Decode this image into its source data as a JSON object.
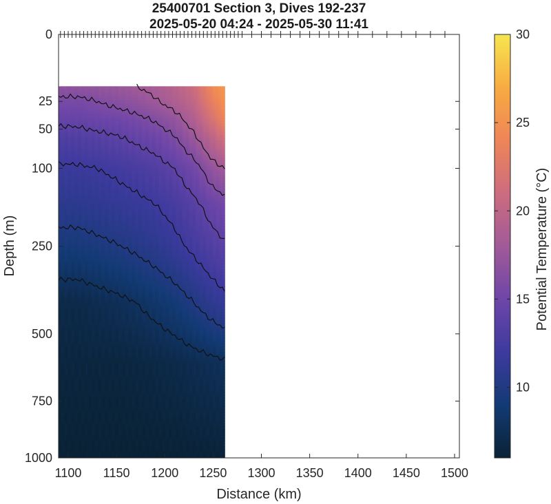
{
  "chart_data": {
    "type": "heatmap",
    "title_lines": [
      "25400701 Section 3, Dives 192-237",
      "2025-05-20 04:24 - 2025-05-30 11:41"
    ],
    "xlabel": "Distance (km)",
    "ylabel": "Depth (m)",
    "colorbar_label": "Potential Temperature (°C)",
    "x_ticks": [
      1100,
      1150,
      1200,
      1250,
      1300,
      1350,
      1400,
      1450,
      1500
    ],
    "y_ticks": [
      0,
      25,
      50,
      100,
      250,
      500,
      750,
      1000
    ],
    "colorbar_ticks": [
      10,
      15,
      20,
      25,
      30
    ],
    "xlim": [
      1090,
      1505
    ],
    "ylim": [
      0,
      1000
    ],
    "y_scale": "square-root (depth)",
    "clim": [
      6,
      30
    ],
    "colormap": [
      "#0a2235",
      "#133a74",
      "#3d3a9e",
      "#6e46a8",
      "#a15a98",
      "#cc6c7f",
      "#ee8558",
      "#f8ab42",
      "#f6e64f"
    ],
    "data_x_range": [
      1090,
      1262
    ],
    "data_top_depth": 15,
    "contour_levels_approx": [
      8,
      10,
      12,
      14,
      16,
      18
    ],
    "dive_marker_distances": [
      1092,
      1096,
      1100,
      1104,
      1108,
      1112,
      1116,
      1120,
      1124,
      1128,
      1132,
      1136,
      1140,
      1144,
      1148,
      1152,
      1156,
      1160,
      1164,
      1168,
      1172,
      1176,
      1180,
      1184,
      1188,
      1192,
      1196,
      1200,
      1204,
      1208,
      1212,
      1216,
      1220,
      1224,
      1228,
      1232,
      1236,
      1240,
      1244,
      1248,
      1252,
      1256,
      1260,
      1264,
      1268,
      1272,
      1276,
      1280,
      1290,
      1300,
      1310,
      1320,
      1330,
      1340,
      1350,
      1360,
      1370,
      1380,
      1390,
      1400,
      1415,
      1430,
      1445,
      1460,
      1475,
      1490
    ],
    "temperature_profiles": [
      {
        "x": 1090,
        "depths": [
          15,
          25,
          40,
          60,
          100,
          160,
          250,
          400,
          600,
          1000
        ],
        "temps": [
          17,
          15.5,
          14.5,
          13,
          11.8,
          10.8,
          9.3,
          7,
          6.5,
          6
        ]
      },
      {
        "x": 1110,
        "depths": [
          15,
          25,
          40,
          60,
          100,
          160,
          250,
          400,
          600,
          1000
        ],
        "temps": [
          17,
          15.5,
          14.5,
          13.2,
          11.8,
          10.8,
          9.3,
          7,
          6.5,
          6
        ]
      },
      {
        "x": 1130,
        "depths": [
          15,
          25,
          40,
          60,
          100,
          160,
          250,
          400,
          600,
          1000
        ],
        "temps": [
          17.2,
          16,
          14.8,
          13.5,
          12,
          11,
          9.6,
          7.3,
          6.5,
          6
        ]
      },
      {
        "x": 1150,
        "depths": [
          15,
          25,
          40,
          60,
          100,
          160,
          250,
          400,
          600,
          1000
        ],
        "temps": [
          17.5,
          16.5,
          15,
          13.8,
          12.3,
          11.3,
          9.9,
          7.6,
          6.5,
          6
        ]
      },
      {
        "x": 1170,
        "depths": [
          15,
          25,
          40,
          60,
          100,
          160,
          250,
          400,
          600,
          1000
        ],
        "temps": [
          18,
          17,
          15.5,
          14.3,
          12.7,
          11.6,
          10.3,
          8,
          6.6,
          6
        ]
      },
      {
        "x": 1190,
        "depths": [
          15,
          25,
          40,
          60,
          100,
          160,
          250,
          400,
          600,
          1000
        ],
        "temps": [
          18.5,
          17.8,
          16.2,
          14.8,
          13.2,
          12,
          10.8,
          8.5,
          6.8,
          6
        ]
      },
      {
        "x": 1210,
        "depths": [
          15,
          25,
          40,
          60,
          100,
          160,
          250,
          400,
          600,
          1000
        ],
        "temps": [
          19.5,
          18.8,
          17.2,
          15.8,
          14,
          12.6,
          11.5,
          9.1,
          7,
          6
        ]
      },
      {
        "x": 1230,
        "depths": [
          15,
          25,
          40,
          60,
          100,
          160,
          250,
          400,
          600,
          1000
        ],
        "temps": [
          21,
          20.2,
          19,
          17.5,
          15.2,
          13.6,
          12.4,
          10,
          7.3,
          6.1
        ]
      },
      {
        "x": 1250,
        "depths": [
          15,
          25,
          40,
          60,
          100,
          160,
          250,
          400,
          600,
          1000
        ],
        "temps": [
          24.5,
          23.5,
          22,
          20,
          17.2,
          14.8,
          13.3,
          11,
          7.6,
          6.1
        ]
      },
      {
        "x": 1262,
        "depths": [
          15,
          25,
          40,
          60,
          100,
          160,
          250,
          400,
          600,
          1000
        ],
        "temps": [
          25.5,
          25,
          24,
          21.5,
          18,
          15.3,
          13.8,
          11.5,
          7.8,
          6.2
        ]
      }
    ]
  }
}
